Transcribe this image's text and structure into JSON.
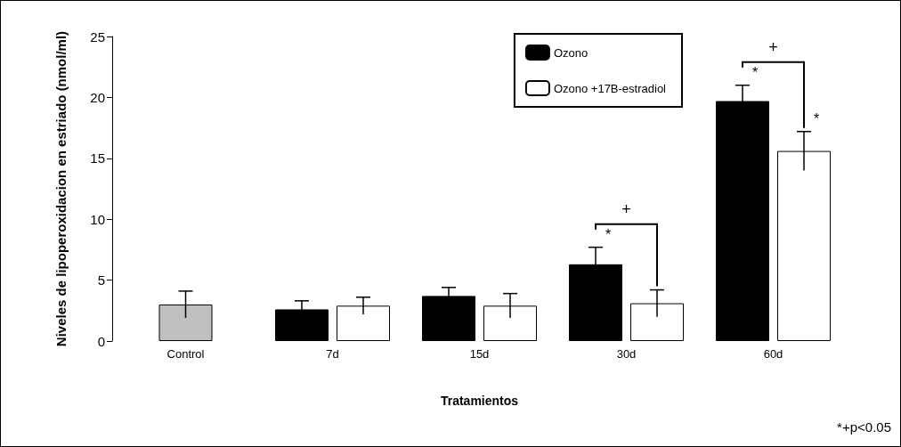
{
  "chart_data": {
    "type": "bar",
    "xlabel": "Tratamientos",
    "ylabel": "Niveles de lipoperoxidacion en estriado (nmol/ml)",
    "categories": [
      "Control",
      "7d",
      "15d",
      "30d",
      "60d"
    ],
    "series": [
      {
        "color": "#c0c0c0",
        "values": [
          3.0,
          null,
          null,
          null,
          null
        ],
        "errors": [
          1.1,
          null,
          null,
          null,
          null
        ]
      },
      {
        "name": "Ozono",
        "color": "#000000",
        "values": [
          null,
          2.6,
          3.7,
          6.3,
          19.7
        ],
        "errors": [
          null,
          0.7,
          0.7,
          1.4,
          1.3
        ],
        "value_labels": [
          null,
          null,
          null,
          "*",
          "*"
        ]
      },
      {
        "name": "Ozono +17B-estradiol",
        "color": "#ffffff",
        "values": [
          null,
          2.9,
          2.9,
          3.1,
          15.6
        ],
        "errors": [
          null,
          0.7,
          1.0,
          1.1,
          1.6
        ],
        "value_labels": [
          null,
          null,
          null,
          null,
          "*"
        ]
      }
    ],
    "annotations": [
      "+",
      "+",
      "*+p<0.05"
    ],
    "ylim": [
      0,
      25
    ],
    "yticks": [
      0,
      5,
      10,
      15,
      20,
      25
    ],
    "grid": false,
    "legend": "top right"
  }
}
